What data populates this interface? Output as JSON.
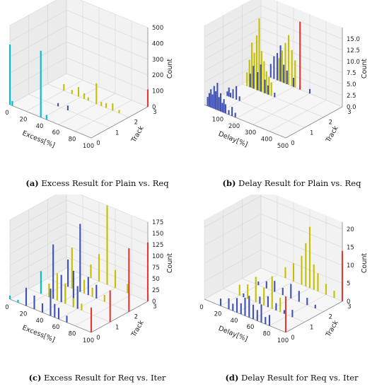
{
  "colors": {
    "track0": "#00bcd4",
    "track1": "#3f51b5",
    "track2": "#c5c000",
    "track3": "#e53935"
  },
  "chart_data": [
    {
      "id": "a",
      "type": "bar3d",
      "caption_letter": "(a)",
      "caption_text": "Excess Result for Plain vs. Req",
      "xlabel": "Excess[%]",
      "ylabel": "Track",
      "zlabel": "Count",
      "xlim": [
        0,
        100
      ],
      "zlim": [
        0,
        500
      ],
      "xticks": [
        "0",
        "20",
        "40",
        "60",
        "80",
        "100"
      ],
      "yticks": [
        "0",
        "1",
        "2",
        "3"
      ],
      "zticks": [
        "0",
        "100",
        "200",
        "300",
        "400",
        "500"
      ],
      "series": [
        {
          "track": 0,
          "color": "#00bcd4",
          "bars": [
            [
              0,
              380
            ],
            [
              3,
              30
            ],
            [
              38,
              420
            ],
            [
              45,
              30
            ]
          ]
        },
        {
          "track": 1,
          "color": "#3f51b5",
          "bars": [
            [
              36,
              20
            ],
            [
              48,
              30
            ]
          ]
        },
        {
          "track": 2,
          "color": "#c5c000",
          "bars": [
            [
              20,
              40
            ],
            [
              30,
              25
            ],
            [
              38,
              60
            ],
            [
              45,
              35
            ],
            [
              50,
              20
            ],
            [
              60,
              130
            ],
            [
              66,
              25
            ],
            [
              72,
              30
            ],
            [
              80,
              45
            ],
            [
              88,
              20
            ]
          ]
        },
        {
          "track": 3,
          "color": "#e53935",
          "bars": [
            [
              100,
              110
            ]
          ]
        }
      ]
    },
    {
      "id": "b",
      "type": "bar3d",
      "caption_letter": "(b)",
      "caption_text": "Delay Result for Plain vs. Req",
      "xlabel": "Delay[%]",
      "ylabel": "Track",
      "zlabel": "Count",
      "xlim": [
        0,
        500
      ],
      "zlim": [
        0,
        17.5
      ],
      "xticks": [
        "100",
        "200",
        "300",
        "400",
        "500"
      ],
      "yticks": [
        "0",
        "1",
        "2",
        "3"
      ],
      "zticks": [
        "0.0",
        "2.5",
        "5.0",
        "7.5",
        "10.0",
        "12.5",
        "15.0"
      ],
      "series": [
        {
          "track": 0,
          "color": "#3f51b5",
          "bars": [
            [
              20,
              2
            ],
            [
              30,
              3
            ],
            [
              40,
              4
            ],
            [
              50,
              3
            ],
            [
              60,
              5
            ],
            [
              70,
              4
            ],
            [
              80,
              6
            ],
            [
              90,
              3
            ],
            [
              100,
              4
            ],
            [
              110,
              2
            ],
            [
              120,
              3
            ],
            [
              130,
              2
            ],
            [
              150,
              1
            ],
            [
              170,
              2
            ],
            [
              190,
              1
            ]
          ]
        },
        {
          "track": 1,
          "color": "#3f51b5",
          "bars": [
            [
              25,
              1
            ],
            [
              35,
              2
            ],
            [
              45,
              1
            ],
            [
              60,
              2
            ],
            [
              80,
              3
            ],
            [
              100,
              1
            ]
          ]
        },
        {
          "track": 2,
          "color": "#c5c000",
          "bars": [
            [
              30,
              3
            ],
            [
              45,
              6
            ],
            [
              60,
              10
            ],
            [
              75,
              8
            ],
            [
              90,
              12
            ],
            [
              105,
              16
            ],
            [
              120,
              9
            ],
            [
              135,
              7
            ],
            [
              150,
              5
            ],
            [
              165,
              4
            ],
            [
              180,
              3
            ]
          ]
        },
        {
          "track": 2,
          "color": "#3f51b5",
          "bars": [
            [
              50,
              3
            ],
            [
              70,
              5
            ],
            [
              95,
              4
            ],
            [
              115,
              6
            ],
            [
              140,
              3
            ],
            [
              160,
              2
            ],
            [
              200,
              1
            ]
          ]
        },
        {
          "track": 3,
          "color": "#3f51b5",
          "bars": [
            [
              60,
              3
            ],
            [
              80,
              5
            ],
            [
              100,
              6
            ],
            [
              120,
              8
            ],
            [
              140,
              4
            ],
            [
              160,
              3
            ],
            [
              200,
              2
            ],
            [
              240,
              1
            ],
            [
              300,
              1
            ]
          ]
        },
        {
          "track": 3,
          "color": "#c5c000",
          "bars": [
            [
              110,
              5
            ],
            [
              130,
              7
            ],
            [
              150,
              9
            ],
            [
              170,
              11
            ],
            [
              190,
              8
            ],
            [
              210,
              6
            ]
          ]
        },
        {
          "track": 3,
          "color": "#e53935",
          "bars": [
            [
              240,
              15
            ]
          ]
        }
      ]
    },
    {
      "id": "c",
      "type": "bar3d",
      "caption_letter": "(c)",
      "caption_text": "Excess Result for Req vs. Iter",
      "xlabel": "Excess[%]",
      "ylabel": "Track",
      "zlabel": "Count",
      "xlim": [
        0,
        100
      ],
      "zlim": [
        0,
        175
      ],
      "xticks": [
        "0",
        "20",
        "40",
        "60",
        "80",
        "100"
      ],
      "yticks": [
        "0",
        "1",
        "2",
        "3"
      ],
      "zticks": [
        "0",
        "25",
        "50",
        "75",
        "100",
        "125",
        "150",
        "175"
      ],
      "series": [
        {
          "track": 0,
          "color": "#00bcd4",
          "bars": [
            [
              0,
              8
            ],
            [
              10,
              6
            ]
          ]
        },
        {
          "track": 0,
          "color": "#3f51b5",
          "bars": [
            [
              20,
              40
            ],
            [
              30,
              30
            ],
            [
              40,
              20
            ],
            [
              50,
              60
            ],
            [
              55,
              30
            ],
            [
              60,
              25
            ],
            [
              70,
              15
            ]
          ]
        },
        {
          "track": 0,
          "color": "#e53935",
          "bars": [
            [
              100,
              55
            ]
          ]
        },
        {
          "track": 1,
          "color": "#00bcd4",
          "bars": [
            [
              15,
              50
            ],
            [
              25,
              10
            ]
          ]
        },
        {
          "track": 1,
          "color": "#3f51b5",
          "bars": [
            [
              30,
              120
            ],
            [
              40,
              60
            ],
            [
              45,
              40
            ],
            [
              55,
              80
            ],
            [
              60,
              50
            ]
          ]
        },
        {
          "track": 1,
          "color": "#c5c000",
          "bars": [
            [
              25,
              30
            ],
            [
              35,
              60
            ],
            [
              45,
              45
            ],
            [
              55,
              20
            ],
            [
              65,
              15
            ]
          ]
        },
        {
          "track": 1,
          "color": "#e53935",
          "bars": [
            [
              100,
              70
            ]
          ]
        },
        {
          "track": 2,
          "color": "#3f51b5",
          "bars": [
            [
              25,
              60
            ],
            [
              40,
              150
            ],
            [
              50,
              40
            ],
            [
              60,
              30
            ]
          ]
        },
        {
          "track": 2,
          "color": "#c5c000",
          "bars": [
            [
              30,
              90
            ],
            [
              45,
              30
            ],
            [
              55,
              20
            ],
            [
              70,
              15
            ]
          ]
        },
        {
          "track": 2,
          "color": "#e53935",
          "bars": [
            [
              100,
              140
            ]
          ]
        },
        {
          "track": 3,
          "color": "#c5c000",
          "bars": [
            [
              30,
              30
            ],
            [
              40,
              60
            ],
            [
              50,
              175
            ],
            [
              60,
              40
            ],
            [
              75,
              20
            ]
          ]
        },
        {
          "track": 3,
          "color": "#e53935",
          "bars": [
            [
              100,
              130
            ]
          ]
        }
      ]
    },
    {
      "id": "d",
      "type": "bar3d",
      "caption_letter": "(d)",
      "caption_text": "Delay Result for Req vs. Iter",
      "xlabel": "Delay[%]",
      "ylabel": "Track",
      "zlabel": "Count",
      "xlim": [
        0,
        100
      ],
      "zlim": [
        0,
        22
      ],
      "xticks": [
        "0",
        "20",
        "40",
        "60",
        "80",
        "100"
      ],
      "yticks": [
        "0",
        "1",
        "2",
        "3"
      ],
      "zticks": [
        "0",
        "5",
        "10",
        "15",
        "20"
      ],
      "series": [
        {
          "track": 0,
          "color": "#3f51b5",
          "bars": [
            [
              20,
              2
            ],
            [
              30,
              3
            ],
            [
              35,
              2
            ],
            [
              40,
              4
            ],
            [
              45,
              3
            ],
            [
              50,
              5
            ],
            [
              55,
              6
            ],
            [
              60,
              4
            ],
            [
              65,
              3
            ],
            [
              70,
              5
            ],
            [
              75,
              2
            ],
            [
              80,
              3
            ]
          ]
        },
        {
          "track": 0,
          "color": "#e53935",
          "bars": [
            [
              100,
              10
            ]
          ]
        },
        {
          "track": 1,
          "color": "#c5c000",
          "bars": [
            [
              20,
              3
            ],
            [
              30,
              4
            ],
            [
              40,
              7
            ],
            [
              50,
              5
            ],
            [
              60,
              9
            ],
            [
              70,
              4
            ]
          ]
        },
        {
          "track": 1,
          "color": "#3f51b5",
          "bars": [
            [
              25,
              1
            ],
            [
              45,
              2
            ],
            [
              55,
              3
            ],
            [
              65,
              2
            ],
            [
              75,
              1
            ],
            [
              85,
              2
            ]
          ]
        },
        {
          "track": 2,
          "color": "#3f51b5",
          "bars": [
            [
              20,
              1
            ],
            [
              30,
              2
            ],
            [
              40,
              3
            ],
            [
              50,
              2
            ],
            [
              60,
              4
            ],
            [
              70,
              3
            ],
            [
              80,
              2
            ],
            [
              90,
              1
            ]
          ]
        },
        {
          "track": 3,
          "color": "#c5c000",
          "bars": [
            [
              30,
              3
            ],
            [
              40,
              5
            ],
            [
              50,
              8
            ],
            [
              55,
              12
            ],
            [
              60,
              17
            ],
            [
              65,
              7
            ],
            [
              70,
              5
            ],
            [
              80,
              3
            ],
            [
              90,
              2
            ]
          ]
        },
        {
          "track": 3,
          "color": "#e53935",
          "bars": [
            [
              100,
              14
            ]
          ]
        }
      ]
    }
  ]
}
